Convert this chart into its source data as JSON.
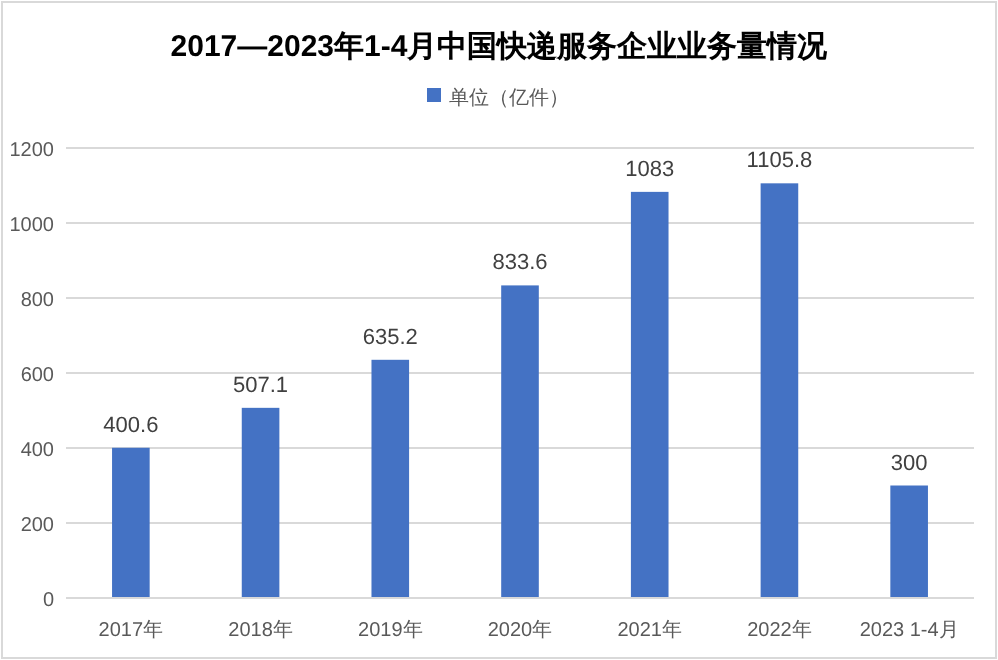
{
  "chart_data": {
    "type": "bar",
    "title": "2017—2023年1-4月中国快递服务企业业务量情况",
    "categories": [
      "2017年",
      "2018年",
      "2019年",
      "2020年",
      "2021年",
      "2022年",
      "2023 1-4月"
    ],
    "series": [
      {
        "name": "单位（亿件）",
        "color": "#4472c4",
        "values": [
          400.6,
          507.1,
          635.2,
          833.6,
          1083,
          1105.8,
          300
        ]
      }
    ],
    "ylim": [
      0,
      1200
    ],
    "yticks": [
      0,
      200,
      400,
      600,
      800,
      1000,
      1200
    ],
    "grid": "y",
    "legend": "top",
    "data_labels": true
  }
}
